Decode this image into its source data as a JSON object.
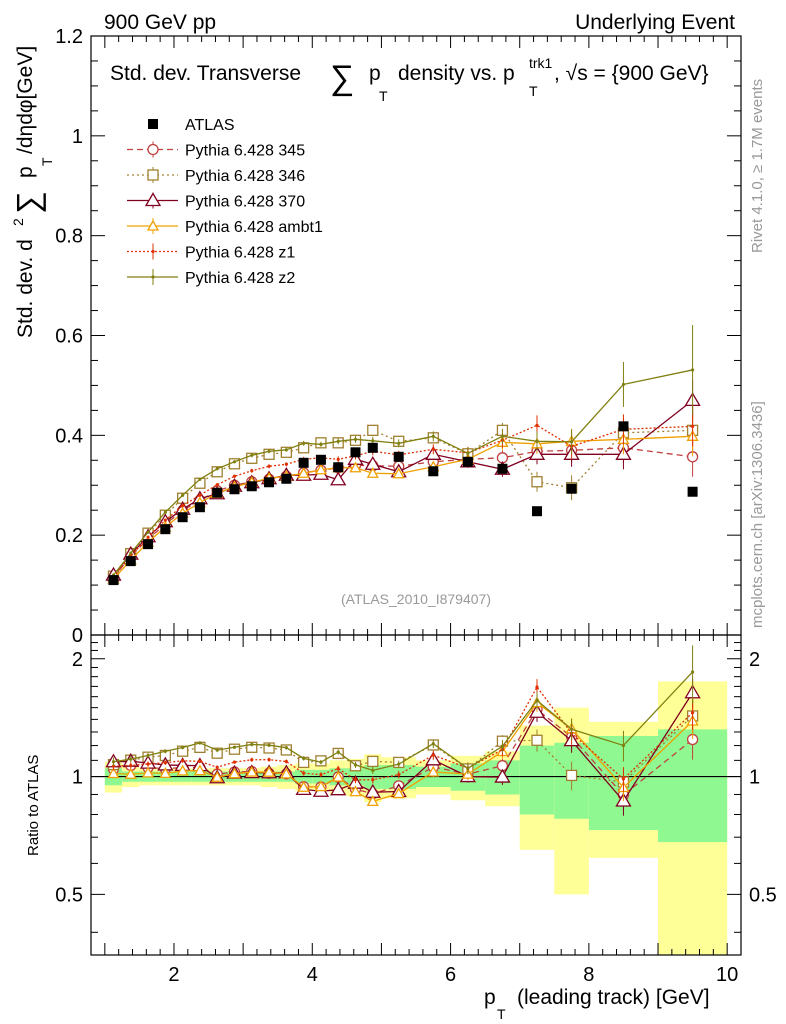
{
  "header": {
    "left": "900 GeV pp",
    "right": "Underlying Event"
  },
  "side_labels": {
    "rivet": "Rivet 4.1.0, ≥ 1.7M events",
    "mcplots": "mcplots.cern.ch [arXiv:1306.3436]"
  },
  "watermark": "(ATLAS_2010_I879407)",
  "title": {
    "p1": "Std. dev. Transverse",
    "sum": "∑",
    "p": "p",
    "T": "T",
    "mid": "density vs. p",
    "trk1": "trk1",
    "T2": "T",
    "end": ", √s = {900 GeV}"
  },
  "ylabel": {
    "std": "Std. dev. d",
    "two": "2",
    "sum": "∑",
    "p": "p",
    "T": "T",
    "tail": "/dηdφ[GeV]"
  },
  "xlabel": {
    "p": "p",
    "T": "T",
    "rest": "(leading track) [GeV]"
  },
  "ratio_ylabel": "Ratio to ATLAS",
  "colors": {
    "atlas": "#000000",
    "p345": "#c04040",
    "p346": "#a08030",
    "p370": "#800020",
    "ambt1": "#f0a000",
    "z1": "#e03000",
    "z2": "#808010",
    "band_green": "#90f890",
    "band_yellow": "#ffff98"
  },
  "chart_data": {
    "type": "scatter",
    "title": "Std. dev. Transverse ∑ p_T density vs. p_T^trk1, √s = {900 GeV}",
    "xlabel": "p_T (leading track) [GeV]",
    "ylabel": "Std. dev. d²∑ p_T /dηdφ[GeV]",
    "xlim": [
      0.8,
      10.2
    ],
    "ylim": [
      0,
      1.2
    ],
    "xticks": [
      "2",
      "4",
      "6",
      "8",
      "10"
    ],
    "yticks": [
      "0",
      "0.2",
      "0.4",
      "0.6",
      "0.8",
      "1",
      "1.2"
    ],
    "ratio": {
      "ylabel": "Ratio to ATLAS",
      "ylim": [
        0.35,
        2.3
      ],
      "log_scale": true,
      "yticks": [
        "0.5",
        "1",
        "2"
      ]
    },
    "x": [
      1.125,
      1.375,
      1.625,
      1.875,
      2.125,
      2.375,
      2.625,
      2.875,
      3.125,
      3.375,
      3.625,
      3.875,
      4.125,
      4.375,
      4.625,
      4.875,
      5.25,
      5.75,
      6.25,
      6.75,
      7.25,
      7.75,
      8.5,
      9.5
    ],
    "x_edges": [
      1.0,
      1.25,
      1.5,
      1.75,
      2.0,
      2.25,
      2.5,
      2.75,
      3.0,
      3.25,
      3.5,
      3.75,
      4.0,
      4.25,
      4.5,
      4.75,
      5.0,
      5.5,
      6.0,
      6.5,
      7.0,
      7.5,
      8.0,
      9.0,
      10.0
    ],
    "data": {
      "name": "ATLAS",
      "values": [
        0.11,
        0.148,
        0.182,
        0.212,
        0.236,
        0.256,
        0.285,
        0.292,
        0.298,
        0.306,
        0.313,
        0.345,
        0.351,
        0.336,
        0.366,
        0.375,
        0.357,
        0.328,
        0.347,
        0.333,
        0.248,
        0.293,
        0.418,
        0.287
      ],
      "err_green": [
        0.05,
        0.03,
        0.03,
        0.03,
        0.03,
        0.03,
        0.03,
        0.03,
        0.03,
        0.03,
        0.03,
        0.04,
        0.04,
        0.05,
        0.05,
        0.07,
        0.07,
        0.06,
        0.08,
        0.1,
        0.2,
        0.22,
        0.27,
        0.32
      ],
      "err_yellow": [
        0.09,
        0.06,
        0.05,
        0.05,
        0.05,
        0.05,
        0.05,
        0.05,
        0.05,
        0.06,
        0.07,
        0.08,
        0.08,
        0.1,
        0.11,
        0.14,
        0.12,
        0.1,
        0.13,
        0.16,
        0.35,
        0.5,
        0.38,
        0.75
      ]
    },
    "series": [
      {
        "name": "Pythia 6.428 345",
        "color": "#c04040",
        "dash": "6,4",
        "marker": "circle",
        "values": [
          0.115,
          0.158,
          0.192,
          0.222,
          0.249,
          0.27,
          0.289,
          0.3,
          0.307,
          0.312,
          0.318,
          0.325,
          0.33,
          0.335,
          0.34,
          0.339,
          0.338,
          0.347,
          0.352,
          0.355,
          0.368,
          0.37,
          0.375,
          0.357
        ],
        "errors": [
          0.003,
          0.003,
          0.003,
          0.003,
          0.003,
          0.003,
          0.003,
          0.003,
          0.004,
          0.004,
          0.004,
          0.005,
          0.005,
          0.006,
          0.007,
          0.008,
          0.008,
          0.01,
          0.012,
          0.015,
          0.02,
          0.025,
          0.03,
          0.04
        ]
      },
      {
        "name": "Pythia 6.428 346",
        "color": "#a08030",
        "dash": "2,3",
        "marker": "square",
        "values": [
          0.118,
          0.163,
          0.204,
          0.24,
          0.274,
          0.304,
          0.327,
          0.343,
          0.354,
          0.362,
          0.366,
          0.375,
          0.385,
          0.385,
          0.39,
          0.41,
          0.388,
          0.395,
          0.363,
          0.41,
          0.307,
          0.295,
          0.405,
          0.41
        ],
        "errors": [
          0.003,
          0.003,
          0.003,
          0.003,
          0.003,
          0.003,
          0.003,
          0.003,
          0.004,
          0.004,
          0.004,
          0.005,
          0.005,
          0.006,
          0.007,
          0.008,
          0.008,
          0.01,
          0.012,
          0.015,
          0.02,
          0.025,
          0.03,
          0.04
        ]
      },
      {
        "name": "Pythia 6.428 370",
        "color": "#800020",
        "dash": "",
        "marker": "triangle",
        "values": [
          0.12,
          0.162,
          0.197,
          0.227,
          0.252,
          0.273,
          0.283,
          0.298,
          0.305,
          0.313,
          0.32,
          0.32,
          0.322,
          0.311,
          0.352,
          0.342,
          0.327,
          0.362,
          0.347,
          0.332,
          0.362,
          0.362,
          0.362,
          0.47
        ],
        "errors": [
          0.003,
          0.003,
          0.003,
          0.003,
          0.003,
          0.003,
          0.003,
          0.003,
          0.004,
          0.004,
          0.004,
          0.005,
          0.005,
          0.006,
          0.007,
          0.008,
          0.008,
          0.01,
          0.012,
          0.015,
          0.02,
          0.025,
          0.03,
          0.04
        ]
      },
      {
        "name": "Pythia 6.428 ambt1",
        "color": "#f0a000",
        "dash": "",
        "marker": "triangle-small",
        "values": [
          0.112,
          0.15,
          0.186,
          0.216,
          0.244,
          0.265,
          0.284,
          0.297,
          0.306,
          0.314,
          0.318,
          0.324,
          0.331,
          0.335,
          0.335,
          0.324,
          0.323,
          0.337,
          0.352,
          0.386,
          0.383,
          0.388,
          0.392,
          0.398
        ],
        "errors": [
          0.003,
          0.003,
          0.003,
          0.003,
          0.003,
          0.003,
          0.003,
          0.003,
          0.004,
          0.004,
          0.004,
          0.005,
          0.005,
          0.006,
          0.007,
          0.008,
          0.008,
          0.01,
          0.012,
          0.015,
          0.02,
          0.025,
          0.03,
          0.04
        ]
      },
      {
        "name": "Pythia 6.428 z1",
        "color": "#e03000",
        "dash": "2,2",
        "marker": "dot",
        "values": [
          0.117,
          0.158,
          0.196,
          0.23,
          0.259,
          0.28,
          0.301,
          0.318,
          0.329,
          0.338,
          0.342,
          0.352,
          0.355,
          0.352,
          0.359,
          0.368,
          0.361,
          0.372,
          0.365,
          0.39,
          0.42,
          0.378,
          0.412,
          0.418
        ],
        "errors": [
          0.003,
          0.003,
          0.003,
          0.003,
          0.003,
          0.003,
          0.003,
          0.003,
          0.004,
          0.004,
          0.004,
          0.005,
          0.005,
          0.006,
          0.007,
          0.008,
          0.008,
          0.01,
          0.012,
          0.015,
          0.02,
          0.025,
          0.03,
          0.04
        ]
      },
      {
        "name": "Pythia 6.428 z2",
        "color": "#808010",
        "dash": "",
        "marker": "dot",
        "values": [
          0.12,
          0.164,
          0.206,
          0.246,
          0.28,
          0.312,
          0.333,
          0.347,
          0.36,
          0.368,
          0.371,
          0.384,
          0.382,
          0.388,
          0.392,
          0.389,
          0.384,
          0.398,
          0.364,
          0.398,
          0.388,
          0.387,
          0.502,
          0.531
        ],
        "errors": [
          0.003,
          0.003,
          0.003,
          0.003,
          0.003,
          0.003,
          0.003,
          0.003,
          0.004,
          0.004,
          0.004,
          0.005,
          0.005,
          0.006,
          0.007,
          0.008,
          0.008,
          0.01,
          0.012,
          0.015,
          0.02,
          0.025,
          0.045,
          0.09
        ]
      }
    ]
  }
}
